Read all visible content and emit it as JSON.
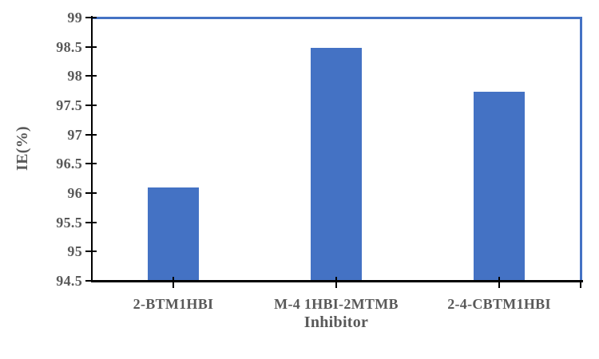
{
  "chart_data": {
    "type": "bar",
    "title": "",
    "xlabel": "Inhibitor",
    "ylabel": "IE(%)",
    "categories": [
      "2-BTM1HBI",
      "M-4 1HBI-2MTMB",
      "2-4-CBTM1HBI"
    ],
    "values": [
      96.1,
      98.48,
      97.73
    ],
    "ylim": [
      94.5,
      99
    ],
    "y_tick_step": 0.5,
    "y_tick_labels": [
      "94.5",
      "95",
      "95.5",
      "96",
      "96.5",
      "97",
      "97.5",
      "98",
      "98.5",
      "99"
    ],
    "grid": false,
    "legend": false,
    "bar_color": "#4472C4",
    "plot_border_color": "#4472C4",
    "axis_color": "#000000",
    "text_color": "#595959"
  }
}
